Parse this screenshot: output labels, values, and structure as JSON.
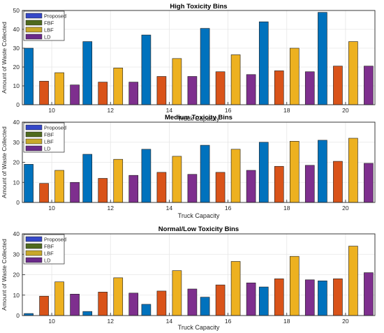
{
  "chart_data": [
    {
      "type": "bar",
      "title": "High Toxicity Bins",
      "xlabel": "Truck Capacity",
      "ylabel": "Amount of Waste Collected",
      "categories": [
        "10",
        "12",
        "14",
        "16",
        "18",
        "20"
      ],
      "ylim": [
        0,
        50
      ],
      "yticks": [
        0,
        10,
        20,
        30,
        40,
        50
      ],
      "grid": true,
      "legend_position": "top-left",
      "series": [
        {
          "name": "Proposed",
          "values": [
            30,
            33.5,
            37,
            40.5,
            44,
            49
          ]
        },
        {
          "name": "FBF",
          "values": [
            12.5,
            12,
            15,
            17.5,
            18,
            20.5
          ]
        },
        {
          "name": "LBF",
          "values": [
            17,
            19.5,
            24.5,
            26.5,
            30,
            33.5
          ]
        },
        {
          "name": "LD",
          "values": [
            10.5,
            12,
            15,
            16,
            17.5,
            20.5
          ]
        }
      ]
    },
    {
      "type": "bar",
      "title": "Medium Toxicity Bins",
      "xlabel": "Truck Capacity",
      "ylabel": "Amount of Waste Collected",
      "categories": [
        "10",
        "12",
        "14",
        "16",
        "18",
        "20"
      ],
      "ylim": [
        0,
        40
      ],
      "yticks": [
        0,
        10,
        20,
        30,
        40
      ],
      "grid": true,
      "legend_position": "top-left",
      "series": [
        {
          "name": "Proposed",
          "values": [
            19,
            24,
            26.5,
            28.5,
            30,
            31
          ]
        },
        {
          "name": "FBF",
          "values": [
            9.5,
            12,
            15,
            15,
            18,
            20.5
          ]
        },
        {
          "name": "LBF",
          "values": [
            16,
            21.5,
            23,
            26.5,
            30.5,
            32
          ]
        },
        {
          "name": "LD",
          "values": [
            10,
            13.5,
            14,
            16,
            18.5,
            19.5
          ]
        }
      ]
    },
    {
      "type": "bar",
      "title": "Normal/Low Toxicity Bins",
      "xlabel": "Truck Capacity",
      "ylabel": "Amount of Waste Collected",
      "categories": [
        "10",
        "12",
        "14",
        "16",
        "18",
        "20"
      ],
      "ylim": [
        0,
        40
      ],
      "yticks": [
        0,
        10,
        20,
        30,
        40
      ],
      "grid": true,
      "legend_position": "top-left",
      "series": [
        {
          "name": "Proposed",
          "values": [
            1,
            2,
            5.5,
            9,
            14,
            17
          ]
        },
        {
          "name": "FBF",
          "values": [
            9.5,
            11.5,
            12,
            15,
            18,
            18
          ]
        },
        {
          "name": "LBF",
          "values": [
            16.5,
            18.5,
            22,
            26.5,
            29,
            34
          ]
        },
        {
          "name": "LD",
          "values": [
            10.5,
            11,
            13,
            16,
            17.5,
            21
          ]
        }
      ]
    }
  ],
  "colors": {
    "proposed": "#0072BD",
    "fbf": "#D95319",
    "lbf": "#EDB120",
    "ld": "#7E2F8E",
    "legend_swatches": [
      "#3548c8",
      "#4f6a1e",
      "#c8a82a",
      "#6a2a8a"
    ],
    "grid": "#e6e6e6",
    "axes": "#262626"
  }
}
